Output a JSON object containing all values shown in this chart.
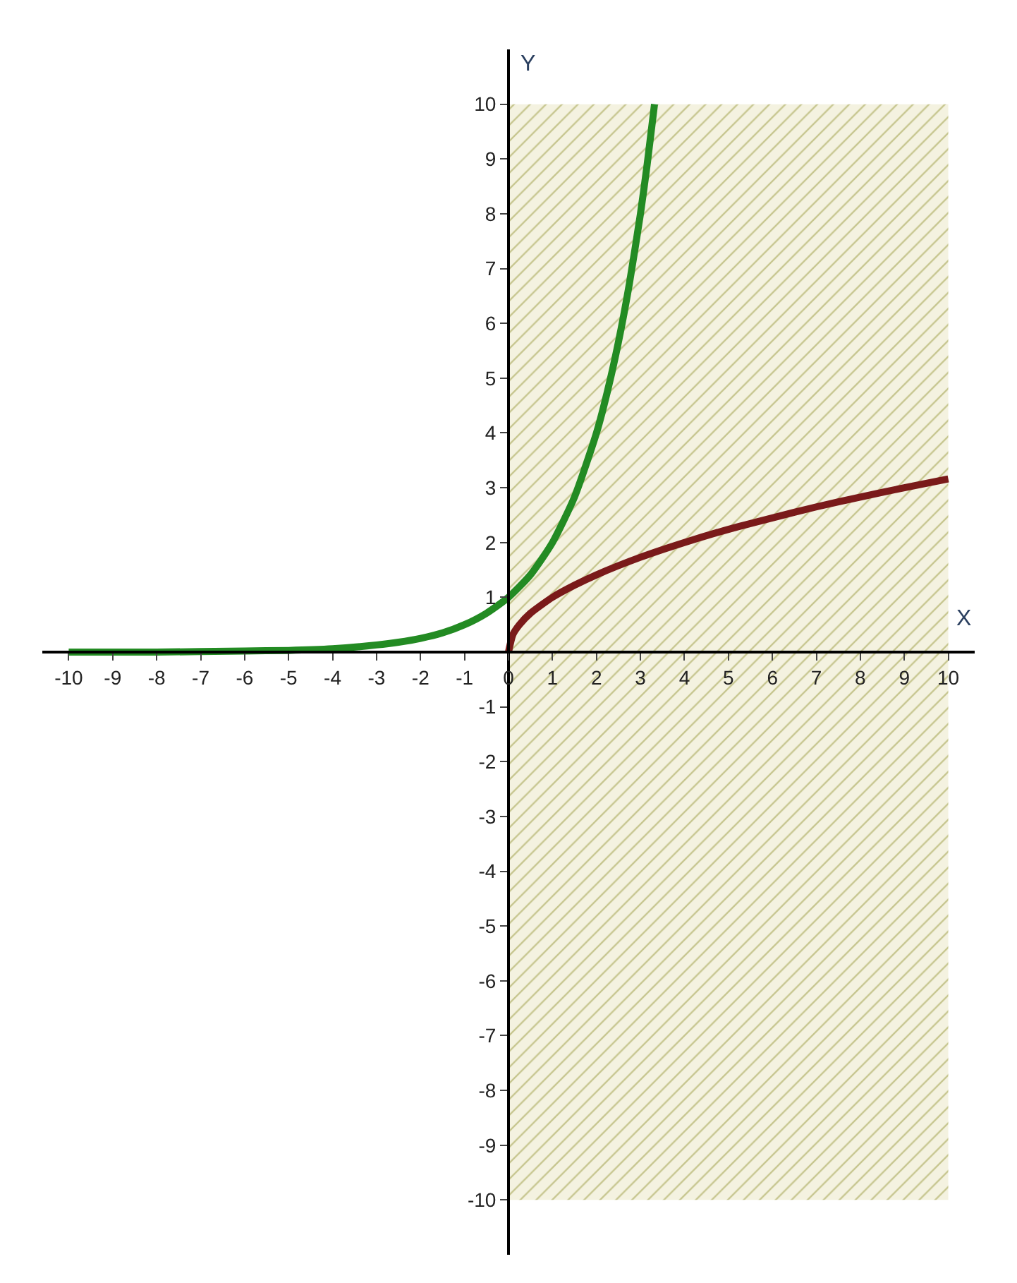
{
  "chart_data": {
    "type": "line",
    "xlabel": "X",
    "ylabel": "Y",
    "xlim": [
      -10.6,
      10.6
    ],
    "ylim": [
      -11,
      11
    ],
    "xticks": [
      -10,
      -9,
      -8,
      -7,
      -6,
      -5,
      -4,
      -3,
      -2,
      -1,
      0,
      1,
      2,
      3,
      4,
      5,
      6,
      7,
      8,
      9,
      10
    ],
    "yticks": [
      -10,
      -9,
      -8,
      -7,
      -6,
      -5,
      -4,
      -3,
      -2,
      -1,
      1,
      2,
      3,
      4,
      5,
      6,
      7,
      8,
      9,
      10
    ],
    "series": [
      {
        "color": "#238b23",
        "x": [
          -10,
          -8,
          -6,
          -5,
          -4,
          -3,
          -2.5,
          -2,
          -1.5,
          -1,
          -0.5,
          0,
          0.5,
          1,
          1.5,
          2,
          2.25,
          2.5,
          2.75,
          3,
          3.15,
          3.32
        ],
        "values": [
          0,
          0,
          0.02,
          0.03,
          0.06,
          0.13,
          0.18,
          0.25,
          0.35,
          0.5,
          0.71,
          1,
          1.41,
          2,
          2.83,
          4,
          4.76,
          5.66,
          6.73,
          8,
          8.88,
          10
        ]
      },
      {
        "color": "#7a1a1a",
        "x": [
          0,
          0.1,
          0.25,
          0.5,
          1,
          1.5,
          2,
          3,
          4,
          5,
          6,
          7,
          8,
          9,
          10
        ],
        "values": [
          0,
          0.32,
          0.5,
          0.71,
          1,
          1.22,
          1.41,
          1.73,
          2,
          2.24,
          2.45,
          2.65,
          2.83,
          3,
          3.16
        ]
      }
    ],
    "bands": [
      {
        "axis": "x",
        "from": 0,
        "to": 10,
        "color": "#9a9a40"
      }
    ],
    "marker": "none",
    "line_style": "solid"
  }
}
